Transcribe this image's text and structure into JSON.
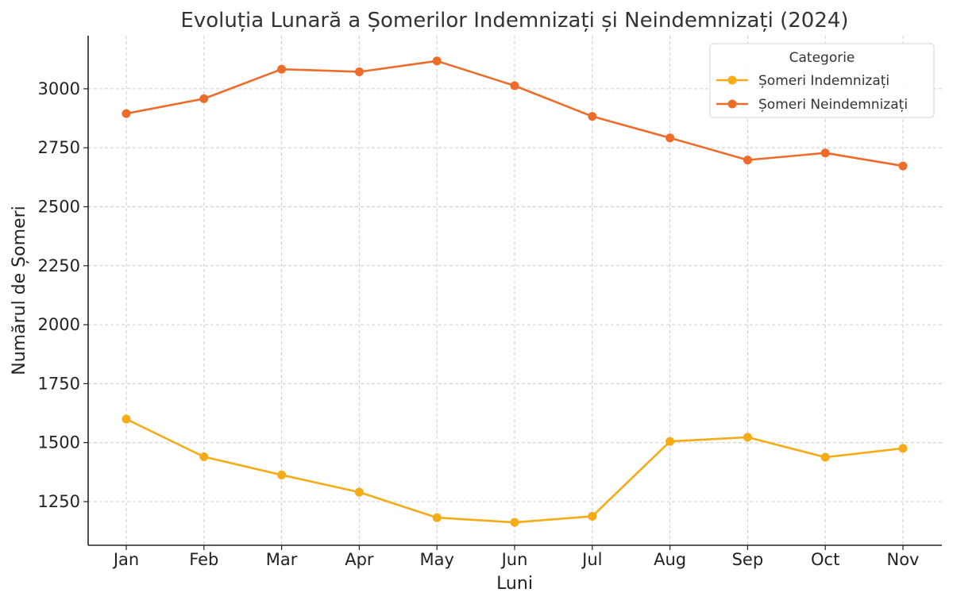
{
  "chart_data": {
    "type": "line",
    "title": "Evoluția Lunară a Șomerilor Indemnizați și Neindemnizați (2024)",
    "xlabel": "Luni",
    "ylabel": "Numărul de Șomeri",
    "categories": [
      "Jan",
      "Feb",
      "Mar",
      "Apr",
      "May",
      "Jun",
      "Jul",
      "Aug",
      "Sep",
      "Oct",
      "Nov"
    ],
    "yticks": [
      1250,
      1500,
      1750,
      2000,
      2250,
      2500,
      2750,
      3000
    ],
    "ylim": [
      1065,
      3225
    ],
    "grid": true,
    "legend": {
      "title": "Categorie",
      "placement": "top-right"
    },
    "series": [
      {
        "name": "Șomeri Indemnizați",
        "color": "#F5AB16",
        "values": [
          1600,
          1440,
          1363,
          1290,
          1182,
          1162,
          1188,
          1505,
          1523,
          1438,
          1476
        ]
      },
      {
        "name": "Șomeri Neindemnizați",
        "color": "#EE6C2A",
        "values": [
          2895,
          2958,
          3083,
          3072,
          3118,
          3013,
          2883,
          2792,
          2698,
          2728,
          2673
        ]
      }
    ]
  }
}
